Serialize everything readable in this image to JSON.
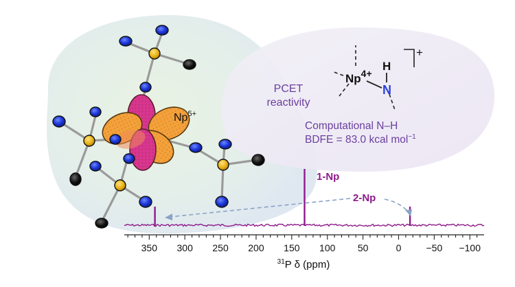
{
  "labels": {
    "np_ion": "Np",
    "np_ion_charge": "5+",
    "pcet_line1": "PCET",
    "pcet_line2": "reactivity",
    "complex_metal": "Np",
    "complex_charge": "4+",
    "complex_h": "H",
    "complex_n": "N",
    "complex_plus": "+",
    "comp_line1": "Computational N–H",
    "comp_line2": "BDFE = 83.0 kcal mol",
    "comp_exp": "−1",
    "peak_1np": "1-Np",
    "peak_2np": "2-Np",
    "axis_sup": "31",
    "axis_label": "P δ (ppm)"
  },
  "colors": {
    "purple": "#8e1a8a",
    "text_purple": "#6a3e9e",
    "blue_atom": "#1b35d6",
    "gold_atom": "#e8b015",
    "orange_lobe": "#f5a13a",
    "magenta_lobe": "#d8368e",
    "n_blue": "#2a3fd8"
  },
  "chart_data": {
    "type": "line",
    "xlabel": "31P δ (ppm)",
    "xlim": [
      385,
      -120
    ],
    "xticks": [
      350,
      300,
      250,
      200,
      150,
      100,
      50,
      0,
      -50,
      -100
    ],
    "xtick_labels": [
      "350",
      "300",
      "250",
      "200",
      "150",
      "100",
      "50",
      "0",
      "−50",
      "−100"
    ],
    "peaks": [
      {
        "ppm": 132,
        "relative_height": 1.0,
        "label": "1-Np"
      },
      {
        "ppm": 342,
        "relative_height": 0.33,
        "label": "2-Np"
      },
      {
        "ppm": -16,
        "relative_height": 0.33,
        "label": "2-Np"
      }
    ]
  }
}
